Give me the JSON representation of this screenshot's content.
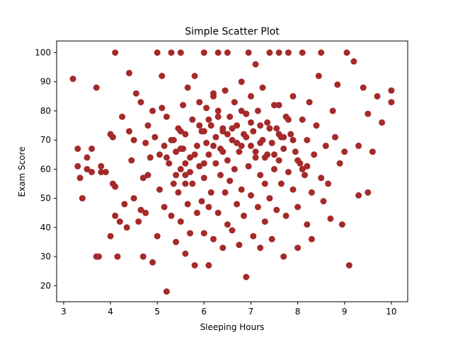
{
  "chart_data": {
    "type": "scatter",
    "title": "Simple Scatter Plot",
    "xlabel": "Sleeping Hours",
    "ylabel": "Exam Score",
    "xlim": [
      2.85,
      10.35
    ],
    "ylim": [
      14.5,
      104
    ],
    "xticks": [
      3,
      4,
      5,
      6,
      7,
      8,
      9,
      10
    ],
    "yticks": [
      20,
      30,
      40,
      50,
      60,
      70,
      80,
      90,
      100
    ],
    "grid": false,
    "legend": "none",
    "point_color": "#a52a2a",
    "x": [
      3.2,
      3.3,
      3.3,
      3.35,
      3.4,
      3.5,
      3.5,
      3.6,
      3.6,
      3.7,
      3.7,
      3.75,
      3.8,
      3.8,
      3.9,
      4.0,
      4.0,
      4.05,
      4.05,
      4.1,
      4.1,
      4.1,
      4.15,
      4.2,
      4.25,
      4.3,
      4.35,
      4.4,
      4.4,
      4.45,
      4.5,
      4.5,
      4.55,
      4.6,
      4.65,
      4.65,
      4.7,
      4.7,
      4.75,
      4.75,
      4.8,
      4.8,
      4.85,
      4.9,
      4.9,
      4.95,
      5.0,
      5.0,
      5.05,
      5.05,
      5.1,
      5.1,
      5.15,
      5.15,
      5.2,
      5.2,
      5.25,
      5.3,
      5.3,
      5.35,
      5.35,
      5.4,
      5.4,
      5.45,
      5.45,
      5.5,
      5.5,
      5.5,
      5.55,
      5.55,
      5.6,
      5.6,
      5.6,
      5.65,
      5.65,
      5.7,
      5.7,
      5.75,
      5.75,
      5.8,
      5.8,
      5.85,
      5.85,
      5.9,
      5.9,
      5.95,
      5.95,
      6.0,
      6.0,
      6.0,
      6.05,
      6.05,
      6.1,
      6.1,
      6.1,
      6.15,
      6.15,
      6.2,
      6.2,
      6.25,
      6.25,
      6.3,
      6.3,
      6.3,
      6.35,
      6.35,
      6.4,
      6.4,
      6.45,
      6.45,
      6.5,
      6.5,
      6.5,
      6.55,
      6.55,
      6.6,
      6.6,
      6.65,
      6.65,
      6.7,
      6.7,
      6.75,
      6.75,
      6.8,
      6.8,
      6.85,
      6.85,
      6.9,
      6.9,
      6.95,
      6.95,
      7.0,
      7.0,
      7.0,
      7.05,
      7.05,
      7.1,
      7.1,
      7.15,
      7.15,
      7.2,
      7.2,
      7.25,
      7.25,
      7.3,
      7.3,
      7.35,
      7.35,
      7.4,
      7.4,
      7.45,
      7.45,
      7.5,
      7.5,
      7.55,
      7.55,
      7.6,
      7.6,
      7.65,
      7.65,
      7.7,
      7.7,
      7.75,
      7.75,
      7.8,
      7.8,
      7.85,
      7.9,
      7.9,
      7.95,
      8.0,
      8.0,
      8.05,
      8.1,
      8.1,
      8.15,
      8.2,
      8.2,
      8.25,
      8.3,
      8.3,
      8.35,
      8.4,
      8.45,
      8.5,
      8.5,
      8.55,
      8.6,
      8.65,
      8.7,
      8.75,
      8.8,
      8.85,
      8.9,
      8.95,
      9.0,
      9.05,
      9.1,
      9.2,
      9.3,
      9.3,
      9.4,
      9.5,
      9.5,
      9.6,
      9.7,
      9.8,
      10.0,
      10.0,
      5.3,
      5.6,
      5.9,
      6.2,
      6.5,
      6.8,
      7.1,
      7.4,
      7.7,
      8.0,
      5.4,
      5.8,
      6.1,
      6.4,
      6.7,
      7.0,
      7.3,
      7.6,
      7.9,
      8.2,
      5.5,
      5.7,
      6.0,
      6.3,
      6.6,
      6.9,
      7.2,
      7.5,
      7.8,
      8.1,
      5.2,
      5.6,
      6.0,
      6.4,
      6.8,
      7.2,
      7.6,
      5.5,
      6.2,
      6.9
    ],
    "y": [
      91,
      67,
      61,
      57,
      50,
      64,
      60,
      59,
      67,
      30,
      88,
      30,
      61,
      59,
      59,
      37,
      72,
      55,
      71,
      100,
      54,
      44,
      30,
      42,
      78,
      48,
      40,
      73,
      93,
      63,
      70,
      50,
      86,
      42,
      83,
      46,
      57,
      30,
      69,
      45,
      58,
      75,
      64,
      28,
      80,
      71,
      100,
      37,
      65,
      53,
      92,
      81,
      68,
      47,
      18,
      78,
      62,
      100,
      44,
      55,
      70,
      35,
      66,
      52,
      74,
      100,
      60,
      42,
      82,
      67,
      31,
      72,
      58,
      48,
      88,
      64,
      38,
      77,
      55,
      27,
      92,
      68,
      45,
      83,
      61,
      49,
      73,
      100,
      57,
      38,
      69,
      81,
      47,
      27,
      65,
      75,
      52,
      36,
      86,
      62,
      71,
      100,
      45,
      80,
      58,
      67,
      33,
      74,
      52,
      87,
      100,
      63,
      41,
      78,
      56,
      70,
      39,
      83,
      60,
      48,
      75,
      66,
      34,
      90,
      53,
      72,
      44,
      79,
      23,
      61,
      100,
      68,
      51,
      85,
      37,
      73,
      64,
      96,
      47,
      80,
      58,
      33,
      70,
      88,
      55,
      42,
      76,
      65,
      100,
      50,
      69,
      36,
      82,
      60,
      74,
      46,
      63,
      100,
      55,
      71,
      30,
      67,
      78,
      44,
      59,
      100,
      72,
      53,
      85,
      66,
      47,
      33,
      62,
      77,
      100,
      58,
      41,
      70,
      83,
      52,
      36,
      65,
      75,
      92,
      57,
      100,
      49,
      68,
      55,
      43,
      80,
      71,
      89,
      62,
      41,
      66,
      100,
      27,
      97,
      68,
      51,
      88,
      79,
      52,
      66,
      85,
      76,
      87,
      83,
      70,
      62,
      75,
      68,
      72,
      80,
      66,
      74,
      71,
      63,
      58,
      65,
      77,
      73,
      69,
      76,
      64,
      82,
      70,
      61,
      67,
      59,
      73,
      78,
      74,
      71,
      69,
      65,
      77,
      60,
      64,
      55,
      62,
      66,
      68,
      75,
      72,
      73,
      85,
      79
    ]
  }
}
